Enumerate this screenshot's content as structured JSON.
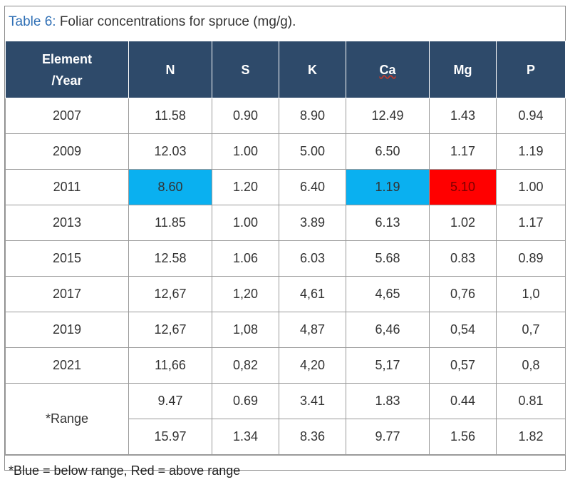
{
  "caption": {
    "label": "Table 6:",
    "text": "Foliar concentrations for spruce (mg/g)."
  },
  "headers": {
    "year_line1": "Element",
    "year_line2": "/Year",
    "cols": [
      "N",
      "S",
      "K",
      "Ca",
      "Mg",
      "P"
    ]
  },
  "rows": [
    {
      "year": "2007",
      "values": [
        "11.58",
        "0.90",
        "8.90",
        "12.49",
        "1.43",
        "0.94"
      ]
    },
    {
      "year": "2009",
      "values": [
        "12.03",
        "1.00",
        "5.00",
        "6.50",
        "1.17",
        "1.19"
      ]
    },
    {
      "year": "2011",
      "values": [
        "8.60",
        "1.20",
        "6.40",
        "1.19",
        "5.10",
        "1.00"
      ]
    },
    {
      "year": "2013",
      "values": [
        "11.85",
        "1.00",
        "3.89",
        "6.13",
        "1.02",
        "1.17"
      ]
    },
    {
      "year": "2015",
      "values": [
        "12.58",
        "1.06",
        "6.03",
        "5.68",
        "0.83",
        "0.89"
      ]
    },
    {
      "year": "2017",
      "values": [
        "12,67",
        "1,20",
        "4,61",
        "4,65",
        "0,76",
        "1,0"
      ]
    },
    {
      "year": "2019",
      "values": [
        "12,67",
        "1,08",
        "4,87",
        "6,46",
        "0,54",
        "0,7"
      ]
    },
    {
      "year": "2021",
      "values": [
        "11,66",
        "0,82",
        "4,20",
        "5,17",
        "0,57",
        "0,8"
      ]
    }
  ],
  "range": {
    "label": "*Range",
    "low": [
      "9.47",
      "0.69",
      "3.41",
      "1.83",
      "0.44",
      "0.81"
    ],
    "high": [
      "15.97",
      "1.34",
      "8.36",
      "9.77",
      "1.56",
      "1.82"
    ]
  },
  "highlight_colors": {
    "below_range": "#0ab0f0",
    "above_range": "#ff0000",
    "header_bg": "#2e4a6a"
  },
  "footnote": "*Blue = below range, Red = above range"
}
